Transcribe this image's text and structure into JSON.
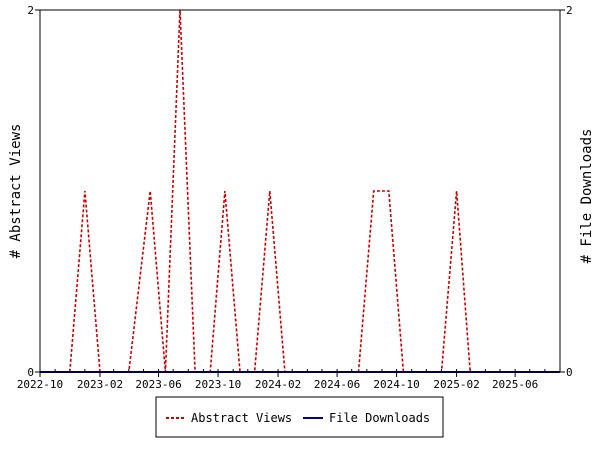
{
  "chart_data": {
    "type": "line",
    "y_left_label": "# Abstract Views",
    "y_right_label": "# File Downloads",
    "x_range": [
      "2022-10-01",
      "2025-09-01"
    ],
    "x_ticks": [
      "2022-10",
      "2023-02",
      "2023-06",
      "2023-10",
      "2024-02",
      "2024-06",
      "2024-10",
      "2025-02",
      "2025-06"
    ],
    "ylim_left": [
      0,
      2
    ],
    "ylim_right": [
      0,
      2
    ],
    "y_ticks_left": [
      "0",
      "2"
    ],
    "y_ticks_right": [
      "0",
      "2"
    ],
    "legend_position": "bottom",
    "series": [
      {
        "name": "Abstract Views",
        "color": "#cc0000",
        "style": "dashed",
        "points": [
          [
            "2022-10-01",
            0
          ],
          [
            "2022-12-01",
            0
          ],
          [
            "2023-01-01",
            1
          ],
          [
            "2023-02-01",
            0
          ],
          [
            "2023-04-01",
            0
          ],
          [
            "2023-05-15",
            1
          ],
          [
            "2023-06-15",
            0
          ],
          [
            "2023-07-15",
            2
          ],
          [
            "2023-08-15",
            0
          ],
          [
            "2023-09-15",
            0
          ],
          [
            "2023-10-15",
            1
          ],
          [
            "2023-11-15",
            0
          ],
          [
            "2023-12-15",
            0
          ],
          [
            "2024-01-15",
            1
          ],
          [
            "2024-02-15",
            0
          ],
          [
            "2024-07-15",
            0
          ],
          [
            "2024-08-15",
            1
          ],
          [
            "2024-09-15",
            1
          ],
          [
            "2024-10-15",
            0
          ],
          [
            "2025-01-01",
            0
          ],
          [
            "2025-02-01",
            1
          ],
          [
            "2025-03-01",
            0
          ],
          [
            "2025-09-01",
            0
          ]
        ]
      },
      {
        "name": "File Downloads",
        "color": "#000099",
        "style": "solid",
        "points": [
          [
            "2022-10-01",
            0
          ],
          [
            "2025-09-01",
            0
          ]
        ]
      }
    ]
  }
}
